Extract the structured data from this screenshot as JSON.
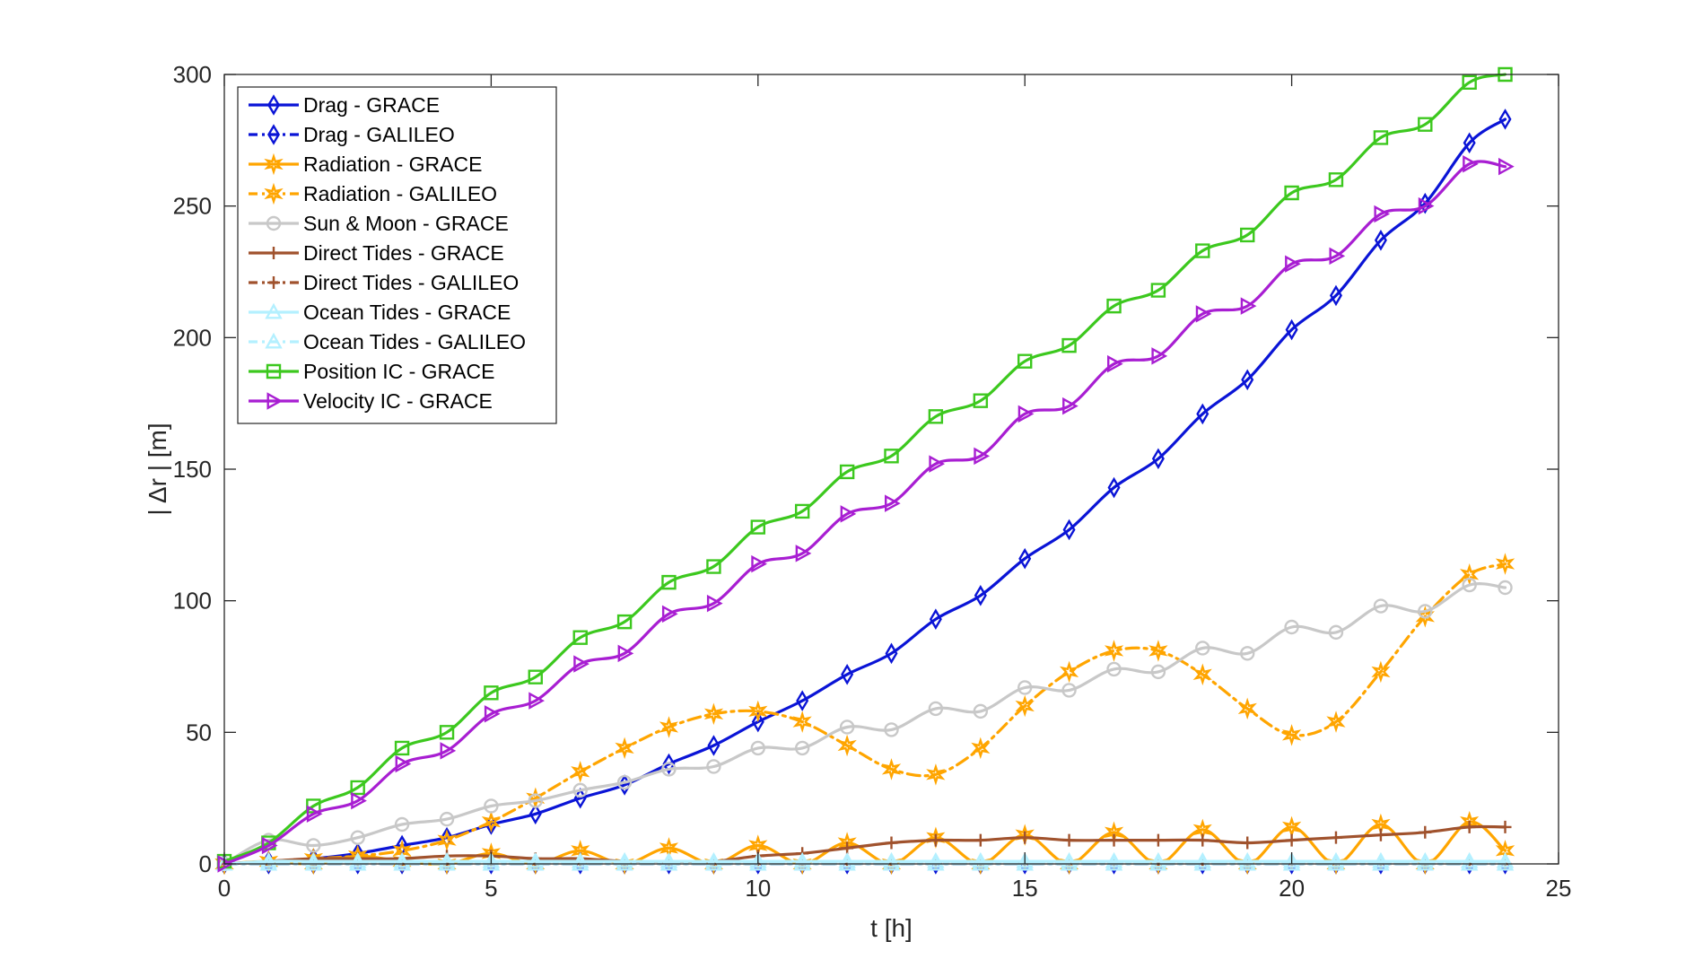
{
  "chart_data": {
    "type": "line",
    "title": "",
    "xlabel": "t [h]",
    "ylabel": "| Δr | [m]",
    "xlim": [
      0,
      25
    ],
    "ylim": [
      0,
      300
    ],
    "xticks": [
      0,
      5,
      10,
      15,
      20,
      25
    ],
    "yticks": [
      0,
      50,
      100,
      150,
      200,
      250,
      300
    ],
    "grid": false,
    "legend_position": "top-left",
    "x": [
      0,
      0.83,
      1.67,
      2.5,
      3.33,
      4.17,
      5,
      5.83,
      6.67,
      7.5,
      8.33,
      9.17,
      10,
      10.83,
      11.67,
      12.5,
      13.33,
      14.17,
      15,
      15.83,
      16.67,
      17.5,
      18.33,
      19.17,
      20,
      20.83,
      21.67,
      22.5,
      23.33,
      24
    ],
    "series": [
      {
        "name": "Drag - GRACE",
        "color": "#0a14d6",
        "dash": "solid",
        "marker": "diamond",
        "values": [
          0,
          1,
          2,
          4,
          7,
          10,
          15,
          19,
          25,
          30,
          38,
          45,
          54,
          62,
          72,
          80,
          93,
          102,
          116,
          127,
          143,
          154,
          171,
          184,
          203,
          216,
          237,
          251,
          274,
          283
        ]
      },
      {
        "name": "Drag - GALILEO",
        "color": "#0a14d6",
        "dash": "dashdot",
        "marker": "diamond",
        "values": [
          0,
          0,
          0,
          0,
          0,
          0,
          0,
          0,
          0,
          0,
          0,
          0,
          0,
          0,
          0,
          0,
          0,
          0,
          0,
          0,
          0,
          0,
          0,
          0,
          0,
          0,
          0,
          0,
          0,
          0
        ]
      },
      {
        "name": "Radiation - GRACE",
        "color": "#ffa500",
        "dash": "solid",
        "marker": "star",
        "values": [
          0,
          1,
          0,
          3,
          1,
          0,
          4,
          0,
          5,
          0,
          6,
          0,
          7,
          0,
          8,
          0,
          10,
          0,
          11,
          0,
          12,
          0,
          13,
          0,
          14,
          0,
          15,
          0,
          16,
          5
        ]
      },
      {
        "name": "Radiation - GALILEO",
        "color": "#ffa500",
        "dash": "dashdot",
        "marker": "star",
        "values": [
          0,
          1,
          2,
          3,
          5,
          9,
          16,
          25,
          35,
          44,
          52,
          57,
          58,
          54,
          45,
          36,
          34,
          44,
          60,
          73,
          81,
          81,
          72,
          59,
          49,
          54,
          73,
          94,
          110,
          114
        ]
      },
      {
        "name": "Sun & Moon - GRACE",
        "color": "#c8c8c8",
        "dash": "solid",
        "marker": "circle",
        "values": [
          0,
          9,
          7,
          10,
          15,
          17,
          22,
          24,
          28,
          31,
          36,
          37,
          44,
          44,
          52,
          51,
          59,
          58,
          67,
          66,
          74,
          73,
          82,
          80,
          90,
          88,
          98,
          96,
          106,
          105
        ]
      },
      {
        "name": "Direct Tides - GRACE",
        "color": "#a0522d",
        "dash": "solid",
        "marker": "plus",
        "values": [
          0,
          1,
          2,
          2,
          2,
          3,
          3,
          2,
          2,
          1,
          1,
          1,
          3,
          4,
          6,
          8,
          9,
          9,
          10,
          9,
          9,
          9,
          9,
          8,
          9,
          10,
          11,
          12,
          14,
          14
        ]
      },
      {
        "name": "Direct Tides - GALILEO",
        "color": "#a0522d",
        "dash": "dashdot",
        "marker": "plus",
        "values": [
          0,
          0,
          0,
          0,
          0,
          0,
          0,
          0,
          0,
          0,
          0,
          0,
          0,
          0,
          0,
          0,
          0,
          0,
          0,
          0,
          0,
          0,
          0,
          0,
          0,
          0,
          0,
          0,
          0,
          0
        ]
      },
      {
        "name": "Ocean Tides - GRACE",
        "color": "#b4f0ff",
        "dash": "solid",
        "marker": "triangle-up",
        "values": [
          0,
          1,
          1,
          1,
          1,
          1,
          1,
          1,
          1,
          1,
          1,
          1,
          1,
          1,
          1,
          1,
          1,
          1,
          1,
          1,
          1,
          1,
          1,
          1,
          1,
          1,
          1,
          1,
          1,
          1
        ]
      },
      {
        "name": "Ocean Tides - GALILEO",
        "color": "#b4f0ff",
        "dash": "dashdot",
        "marker": "triangle-up",
        "values": [
          0,
          0,
          0,
          0,
          0,
          0,
          0,
          0,
          0,
          0,
          0,
          0,
          0,
          0,
          0,
          0,
          0,
          0,
          0,
          0,
          0,
          0,
          0,
          0,
          0,
          0,
          0,
          0,
          0,
          0
        ]
      },
      {
        "name": "Position IC - GRACE",
        "color": "#3cc81e",
        "dash": "solid",
        "marker": "square",
        "values": [
          1,
          8,
          22,
          29,
          44,
          50,
          65,
          71,
          86,
          92,
          107,
          113,
          128,
          134,
          149,
          155,
          170,
          176,
          191,
          197,
          212,
          218,
          233,
          239,
          255,
          260,
          276,
          281,
          297,
          300
        ]
      },
      {
        "name": "Velocity IC - GRACE",
        "color": "#a81ed2",
        "dash": "solid",
        "marker": "triangle-right",
        "values": [
          0,
          7,
          19,
          24,
          38,
          43,
          57,
          62,
          76,
          80,
          95,
          99,
          114,
          118,
          133,
          137,
          152,
          155,
          171,
          174,
          190,
          193,
          209,
          212,
          228,
          231,
          247,
          250,
          266,
          265
        ]
      }
    ]
  }
}
